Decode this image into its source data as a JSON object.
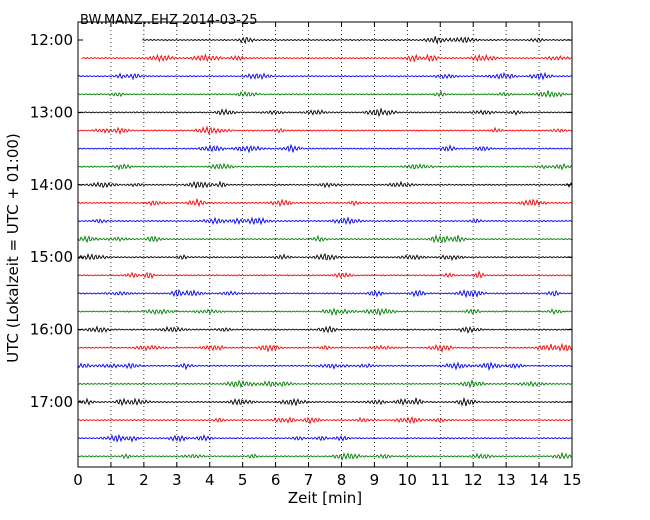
{
  "chart_data": {
    "type": "line",
    "title": "BW.MANZ..EHZ 2014-03-25",
    "xlabel": "Zeit  [min]",
    "ylabel": "UTC (Lokalzeit = UTC + 01:00)",
    "xlim": [
      0,
      15
    ],
    "x_ticks": [
      "0",
      "1",
      "2",
      "3",
      "4",
      "5",
      "6",
      "7",
      "8",
      "9",
      "10",
      "11",
      "12",
      "13",
      "14",
      "15"
    ],
    "y_ticks": [
      "12:00",
      "13:00",
      "14:00",
      "15:00",
      "16:00",
      "17:00"
    ],
    "grid": "vertical dotted lines at each minute",
    "trace_interval_min": 15,
    "trace_colors": [
      "#000000",
      "#ff0000",
      "#0000ff",
      "#008000"
    ],
    "traces": [
      {
        "start": "12:00",
        "data_from_min": 1.95
      },
      {
        "start": "12:15",
        "data_from_min": 0.1
      },
      {
        "start": "12:30"
      },
      {
        "start": "12:45"
      },
      {
        "start": "13:00"
      },
      {
        "start": "13:15"
      },
      {
        "start": "13:30"
      },
      {
        "start": "13:45"
      },
      {
        "start": "14:00"
      },
      {
        "start": "14:15"
      },
      {
        "start": "14:30"
      },
      {
        "start": "14:45"
      },
      {
        "start": "15:00"
      },
      {
        "start": "15:15"
      },
      {
        "start": "15:30"
      },
      {
        "start": "15:45"
      },
      {
        "start": "16:00"
      },
      {
        "start": "16:15"
      },
      {
        "start": "16:30"
      },
      {
        "start": "16:45"
      },
      {
        "start": "17:00"
      },
      {
        "start": "17:15"
      },
      {
        "start": "17:30"
      },
      {
        "start": "17:45"
      }
    ]
  }
}
